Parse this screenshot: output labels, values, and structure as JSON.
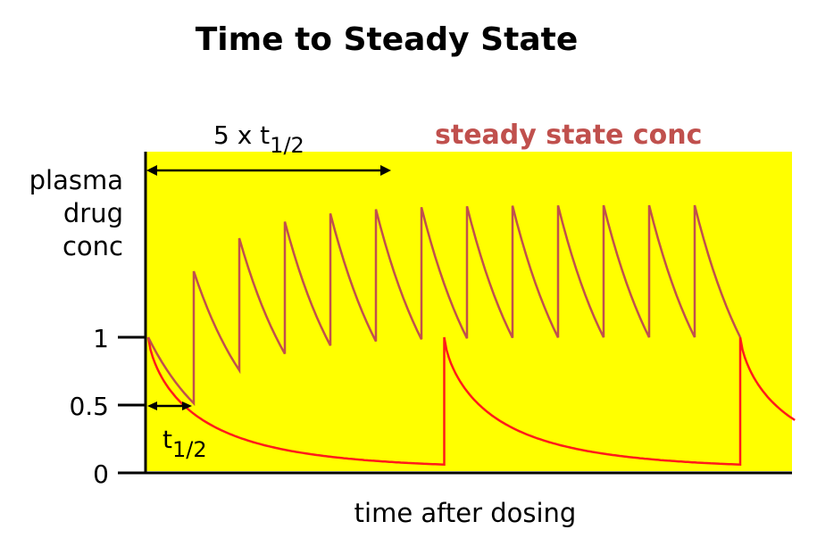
{
  "title": "Time to Steady State",
  "ylabel_lines": [
    "plasma",
    "drug",
    "conc"
  ],
  "xlabel": "time after dosing",
  "yticks": [
    "1",
    "0.5",
    "0"
  ],
  "annotations": {
    "five_half_lives": "5 x t",
    "five_half_lives_sub": "1/2",
    "half_life": "t",
    "half_life_sub": "1/2",
    "steady_state": "steady state conc"
  },
  "colors": {
    "background": "#ffff00",
    "single_dose": "#ff1a1a",
    "repeated_dose": "#c0504d",
    "steady_state_text": "#c0504d",
    "axes": "#000000"
  },
  "chart_data": {
    "type": "line",
    "ylim": [
      0,
      1
    ],
    "series": [
      {
        "dose_times_half_lives": [
          0,
          6.5,
          13
        ],
        "peak": 1,
        "decay": "0.5 per half-life"
      },
      {
        "dose_interval_half_lives": 1,
        "peak_start": 1,
        "doses": 13,
        "trough_ratio": 0.5
      }
    ]
  }
}
